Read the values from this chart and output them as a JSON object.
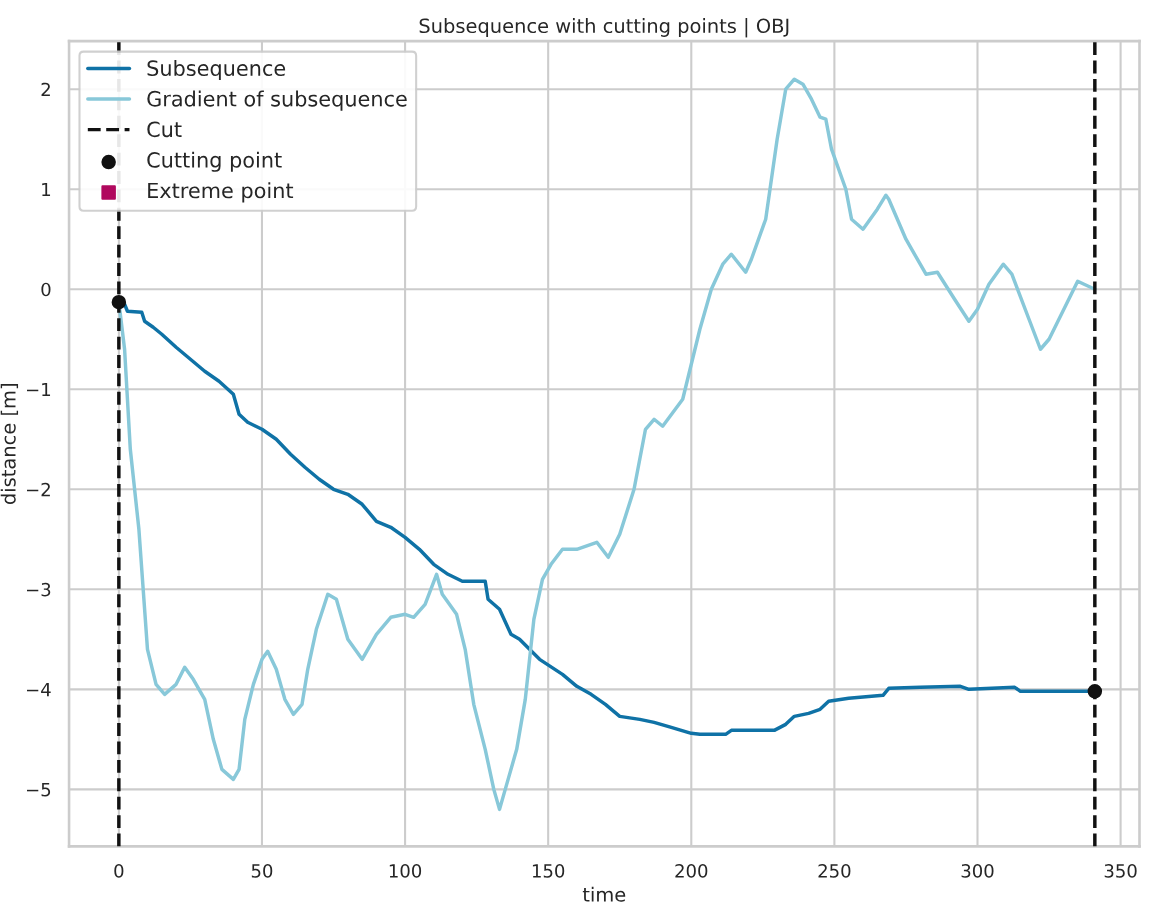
{
  "chart_data": {
    "type": "line",
    "title": "Subsequence with cutting points | OBJ",
    "xlabel": "time",
    "ylabel": "distance [m]",
    "xlim": [
      -17.4,
      356.6
    ],
    "ylim": [
      -5.57,
      2.48
    ],
    "xticks": [
      0,
      50,
      100,
      150,
      200,
      250,
      300,
      350
    ],
    "yticks": [
      {
        "value": -5,
        "label": "−5"
      },
      {
        "value": -4,
        "label": "−4"
      },
      {
        "value": -3,
        "label": "−3"
      },
      {
        "value": -2,
        "label": "−2"
      },
      {
        "value": -1,
        "label": "−1"
      },
      0,
      1,
      2
    ],
    "grid": true,
    "legend": "top left",
    "series": [
      {
        "name": "Subsequence",
        "color": "#0f72a6",
        "x": [
          0,
          2,
          3,
          8,
          9,
          12,
          15,
          20,
          25,
          30,
          35,
          40,
          42,
          45,
          50,
          55,
          60,
          65,
          70,
          75,
          80,
          85,
          90,
          95,
          100,
          105,
          110,
          115,
          120,
          123,
          128,
          129,
          133,
          137,
          140,
          147,
          155,
          160,
          165,
          170,
          175,
          182,
          187,
          193,
          200,
          203,
          212,
          214,
          229,
          233,
          236,
          241,
          245,
          248,
          255,
          267,
          269,
          280,
          294,
          297,
          305,
          313,
          315,
          341
        ],
        "values": [
          -0.13,
          -0.15,
          -0.22,
          -0.23,
          -0.32,
          -0.38,
          -0.45,
          -0.58,
          -0.7,
          -0.82,
          -0.92,
          -1.05,
          -1.25,
          -1.33,
          -1.4,
          -1.5,
          -1.65,
          -1.78,
          -1.9,
          -2.0,
          -2.05,
          -2.15,
          -2.32,
          -2.38,
          -2.48,
          -2.6,
          -2.75,
          -2.85,
          -2.92,
          -2.92,
          -2.92,
          -3.1,
          -3.2,
          -3.45,
          -3.5,
          -3.7,
          -3.85,
          -3.97,
          -4.05,
          -4.15,
          -4.27,
          -4.3,
          -4.33,
          -4.38,
          -4.44,
          -4.45,
          -4.45,
          -4.41,
          -4.41,
          -4.35,
          -4.27,
          -4.24,
          -4.2,
          -4.12,
          -4.09,
          -4.06,
          -3.99,
          -3.98,
          -3.97,
          -4.0,
          -3.99,
          -3.98,
          -4.02,
          -4.02
        ]
      },
      {
        "name": "Gradient of subsequence",
        "color": "#88c8d9",
        "x": [
          0,
          2,
          4,
          7,
          10,
          13,
          16,
          20,
          23,
          26,
          30,
          33,
          36,
          40,
          42,
          44,
          47,
          50,
          52,
          55,
          58,
          61,
          64,
          66,
          69,
          73,
          76,
          80,
          85,
          90,
          95,
          100,
          103,
          107,
          111,
          113,
          118,
          121,
          124,
          128,
          131,
          133,
          136,
          139,
          142,
          145,
          148,
          151,
          155,
          160,
          167,
          171,
          175,
          180,
          184,
          187,
          190,
          197,
          203,
          207,
          211,
          214,
          219,
          221,
          226,
          230,
          233,
          236,
          239,
          242,
          245,
          247,
          249,
          254,
          256,
          260,
          265,
          268,
          269,
          275,
          282,
          286,
          292,
          297,
          300,
          304,
          309,
          312,
          318,
          322,
          325,
          335,
          341
        ],
        "values": [
          -0.13,
          -0.6,
          -1.6,
          -2.4,
          -3.6,
          -3.95,
          -4.05,
          -3.95,
          -3.78,
          -3.9,
          -4.1,
          -4.5,
          -4.8,
          -4.9,
          -4.8,
          -4.3,
          -3.95,
          -3.7,
          -3.62,
          -3.8,
          -4.1,
          -4.25,
          -4.15,
          -3.8,
          -3.4,
          -3.05,
          -3.1,
          -3.5,
          -3.7,
          -3.45,
          -3.28,
          -3.25,
          -3.28,
          -3.15,
          -2.85,
          -3.05,
          -3.25,
          -3.6,
          -4.15,
          -4.6,
          -5.0,
          -5.2,
          -4.9,
          -4.6,
          -4.1,
          -3.3,
          -2.9,
          -2.75,
          -2.6,
          -2.6,
          -2.53,
          -2.68,
          -2.45,
          -2.0,
          -1.4,
          -1.3,
          -1.37,
          -1.1,
          -0.4,
          0.0,
          0.25,
          0.35,
          0.17,
          0.3,
          0.7,
          1.5,
          2.0,
          2.1,
          2.05,
          1.9,
          1.72,
          1.7,
          1.4,
          1.0,
          0.7,
          0.6,
          0.8,
          0.94,
          0.9,
          0.5,
          0.15,
          0.17,
          -0.1,
          -0.32,
          -0.2,
          0.05,
          0.25,
          0.15,
          -0.3,
          -0.6,
          -0.5,
          0.08,
          0.0
        ]
      },
      {
        "name": "Cutting point",
        "type": "scatter",
        "color": "#111111",
        "marker": "circle",
        "x": [
          0,
          341
        ],
        "values": [
          -0.13,
          -4.02
        ]
      },
      {
        "name": "Extreme point",
        "type": "scatter",
        "color": "#b0085e",
        "marker": "square"
      }
    ],
    "ref_lines": [
      {
        "axis": "x",
        "value": 0,
        "label": "Cut",
        "color": "#111111",
        "line_style": "dashed"
      },
      {
        "axis": "x",
        "value": 341,
        "color": "#111111",
        "line_style": "dashed"
      }
    ]
  }
}
